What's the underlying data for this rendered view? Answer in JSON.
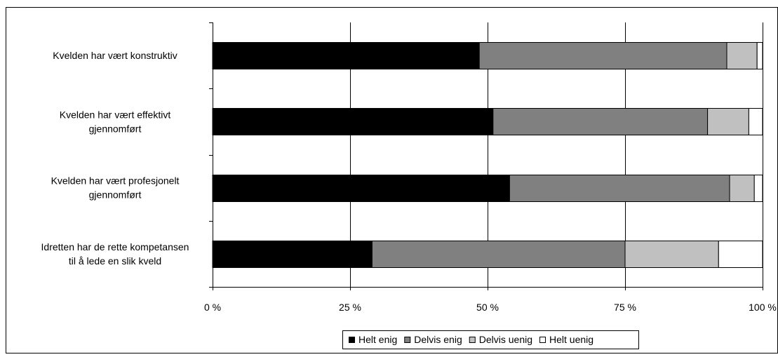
{
  "chart_data": {
    "type": "bar",
    "orientation": "horizontal",
    "stacked": "percent",
    "categories": [
      [
        "Kvelden har vært konstruktiv"
      ],
      [
        "Kvelden har vært effektivt",
        "gjennomført"
      ],
      [
        "Kvelden har vært profesjonelt",
        "gjennomført"
      ],
      [
        "Idretten har de rette kompetansen",
        "til å lede en slik kveld"
      ]
    ],
    "series": [
      {
        "name": "Helt enig",
        "color": "#000000",
        "values": [
          48.5,
          51,
          54,
          29
        ]
      },
      {
        "name": "Delvis enig",
        "color": "#808080",
        "values": [
          45,
          39,
          40,
          46
        ]
      },
      {
        "name": "Delvis uenig",
        "color": "#c0c0c0",
        "values": [
          5.5,
          7.5,
          4.5,
          17
        ]
      },
      {
        "name": "Helt uenig",
        "color": "#ffffff",
        "values": [
          1,
          2.5,
          1.5,
          8
        ]
      }
    ],
    "xlim": [
      0,
      100
    ],
    "xticks": [
      0,
      25,
      50,
      75,
      100
    ],
    "xtick_labels": [
      "0 %",
      "25 %",
      "50 %",
      "75 %",
      "100 %"
    ],
    "grid": "vertical",
    "legend_position": "bottom",
    "title": "",
    "xlabel": "",
    "ylabel": ""
  }
}
